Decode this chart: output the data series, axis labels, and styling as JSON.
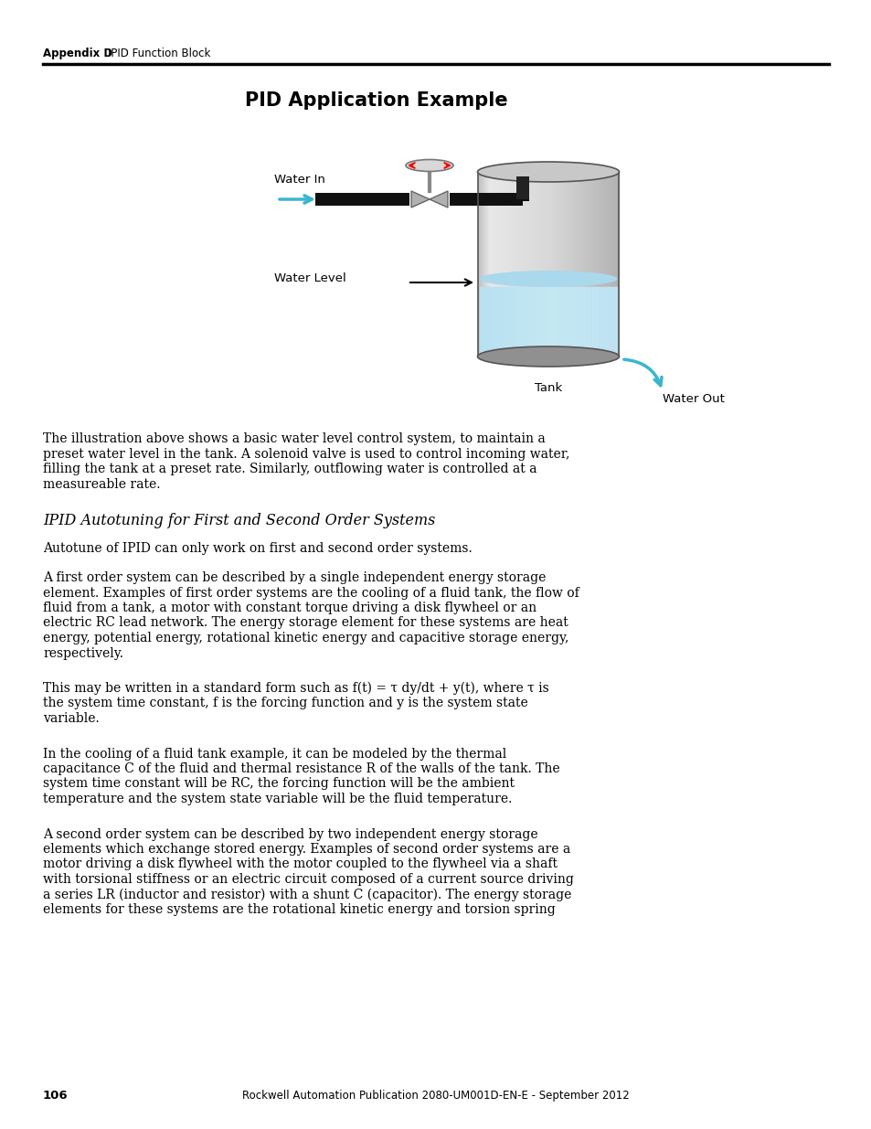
{
  "page_num": "106",
  "footer_text": "Rockwell Automation Publication 2080-UM001D-EN-E - September 2012",
  "header_bold": "Appendix D",
  "header_normal": "IPID Function Block",
  "section_title": "PID Application Example",
  "italic_heading": "IPID Autotuning for First and Second Order Systems",
  "water_in_label": "Water In",
  "water_level_label": "Water Level",
  "tank_label": "Tank",
  "water_out_label": "Water Out",
  "para1_lines": [
    "The illustration above shows a basic water level control system, to maintain a",
    "preset water level in the tank. A solenoid valve is used to control incoming water,",
    "filling the tank at a preset rate. Similarly, outflowing water is controlled at a",
    "measureable rate."
  ],
  "para2": "Autotune of IPID can only work on first and second order systems.",
  "para3_lines": [
    "A first order system can be described by a single independent energy storage",
    "element. Examples of first order systems are the cooling of a fluid tank, the flow of",
    "fluid from a tank, a motor with constant torque driving a disk flywheel or an",
    "electric RC lead network. The energy storage element for these systems are heat",
    "energy, potential energy, rotational kinetic energy and capacitive storage energy,",
    "respectively."
  ],
  "para4_lines": [
    "This may be written in a standard form such as f(t) = τ dy/dt + y(t), where τ is",
    "the system time constant, f is the forcing function and y is the system state",
    "variable."
  ],
  "para5_lines": [
    "In the cooling of a fluid tank example, it can be modeled by the thermal",
    "capacitance C of the fluid and thermal resistance R of the walls of the tank. The",
    "system time constant will be RC, the forcing function will be the ambient",
    "temperature and the system state variable will be the fluid temperature."
  ],
  "para6_lines": [
    "A second order system can be described by two independent energy storage",
    "elements which exchange stored energy. Examples of second order systems are a",
    "motor driving a disk flywheel with the motor coupled to the flywheel via a shaft",
    "with torsional stiffness or an electric circuit composed of a current source driving",
    "a series LR (inductor and resistor) with a shunt C (capacitor). The energy storage",
    "elements for these systems are the rotational kinetic energy and torsion spring"
  ],
  "bg_color": "#ffffff",
  "text_color": "#000000"
}
